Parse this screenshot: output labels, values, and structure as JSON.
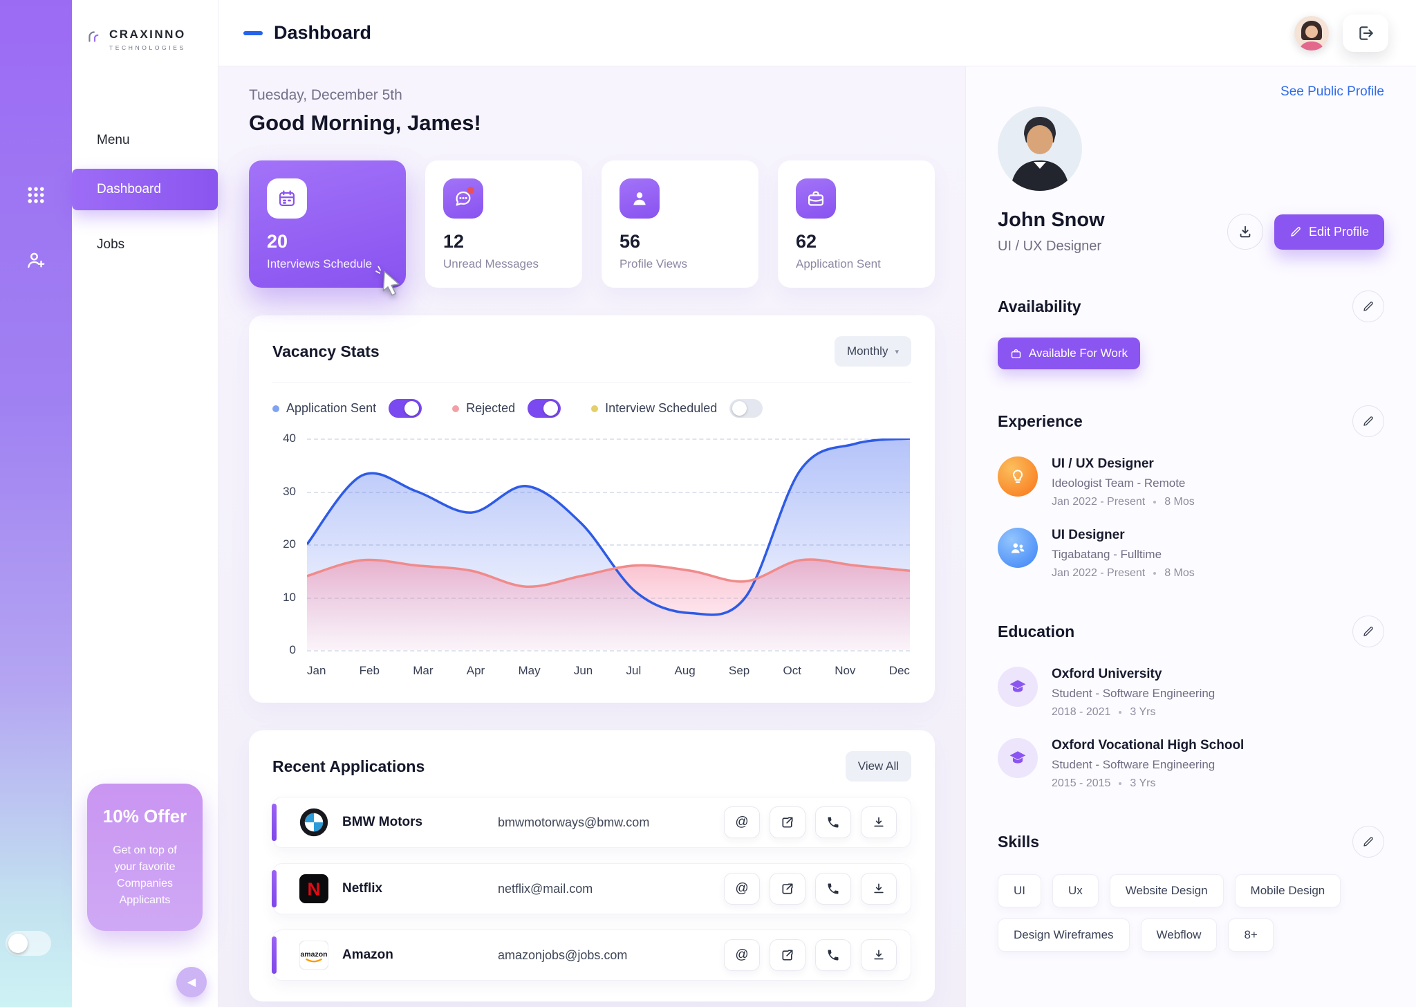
{
  "brand": {
    "name": "CRAXINNO",
    "sub": "TECHNOLOGIES"
  },
  "sidebar": {
    "menu_label": "Menu",
    "items": [
      {
        "label": "Dashboard",
        "active": true
      },
      {
        "label": "Jobs",
        "active": false
      }
    ],
    "offer": {
      "title": "10% Offer",
      "body": "Get on top of your favorite Companies Applicants"
    }
  },
  "header": {
    "title": "Dashboard"
  },
  "greeting": {
    "date": "Tuesday, December 5th",
    "message": "Good Morning, James!"
  },
  "stats": [
    {
      "value": "20",
      "label": "Interviews Schedule",
      "icon": "calendar-icon",
      "active": true
    },
    {
      "value": "12",
      "label": "Unread Messages",
      "icon": "message-icon",
      "active": false
    },
    {
      "value": "56",
      "label": "Profile Views",
      "icon": "person-icon",
      "active": false
    },
    {
      "value": "62",
      "label": "Application Sent",
      "icon": "briefcase-icon",
      "active": false
    }
  ],
  "vacancy": {
    "title": "Vacancy Stats",
    "period": "Monthly",
    "legend": [
      {
        "label": "Application Sent",
        "dot": "#7FA3F2",
        "on": true
      },
      {
        "label": "Rejected",
        "dot": "#F2A0A5",
        "on": true
      },
      {
        "label": "Interview Scheduled",
        "dot": "#E3CF6B",
        "on": false
      }
    ]
  },
  "chart_data": {
    "type": "area",
    "title": "Vacancy Stats",
    "x": [
      "Jan",
      "Feb",
      "Mar",
      "Apr",
      "May",
      "Jun",
      "Jul",
      "Aug",
      "Sep",
      "Oct",
      "Nov",
      "Dec"
    ],
    "ylim": [
      0,
      40
    ],
    "yticks": [
      0,
      10,
      20,
      30,
      40
    ],
    "grid": "dashed-horizontal",
    "legend_position": "top-left",
    "series": [
      {
        "name": "Application Sent",
        "color": "#2E5BE6",
        "fill_top": "rgba(77,112,240,0.42)",
        "fill_bottom": "rgba(77,112,240,0.02)",
        "visible": true,
        "values": [
          20,
          33,
          30,
          26,
          31,
          24,
          11,
          7,
          10,
          34,
          39,
          40
        ]
      },
      {
        "name": "Rejected",
        "color": "#F08B8B",
        "fill_top": "rgba(244,120,150,0.48)",
        "fill_bottom": "rgba(250,170,200,0.10)",
        "visible": true,
        "values": [
          14,
          17,
          16,
          15,
          12,
          14,
          16,
          15,
          13,
          17,
          16,
          15
        ]
      },
      {
        "name": "Interview Scheduled",
        "color": "#E3CF6B",
        "visible": false,
        "values": []
      }
    ]
  },
  "applications": {
    "title": "Recent Applications",
    "view_all": "View All",
    "rows": [
      {
        "company": "BMW Motors",
        "email": "bmwmotorways@bmw.com",
        "logo": "bmw-logo"
      },
      {
        "company": "Netflix",
        "email": "netflix@mail.com",
        "logo": "netflix-logo"
      },
      {
        "company": "Amazon",
        "email": "amazonjobs@jobs.com",
        "logo": "amazon-logo"
      }
    ]
  },
  "profile": {
    "see_public": "See Public Profile",
    "name": "John Snow",
    "role": "UI / UX Designer",
    "edit_profile": "Edit Profile",
    "availability": {
      "heading": "Availability",
      "badge": "Available For Work"
    },
    "experience": {
      "heading": "Experience",
      "items": [
        {
          "title": "UI / UX Designer",
          "subtitle": "Ideologist Team - Remote",
          "period": "Jan 2022 - Present",
          "duration": "8 Mos"
        },
        {
          "title": "UI Designer",
          "subtitle": "Tigabatang - Fulltime",
          "period": "Jan 2022 - Present",
          "duration": "8 Mos"
        }
      ]
    },
    "education": {
      "heading": "Education",
      "items": [
        {
          "title": "Oxford University",
          "subtitle": "Student - Software Engineering",
          "period": "2018 - 2021",
          "duration": "3 Yrs"
        },
        {
          "title": "Oxford Vocational High School",
          "subtitle": "Student - Software Engineering",
          "period": "2015 - 2015",
          "duration": "3 Yrs"
        }
      ]
    },
    "skills": {
      "heading": "Skills",
      "chips": [
        "UI",
        "Ux",
        "Website Design",
        "Mobile Design",
        "Design Wireframes",
        "Webflow",
        "8+"
      ]
    }
  }
}
